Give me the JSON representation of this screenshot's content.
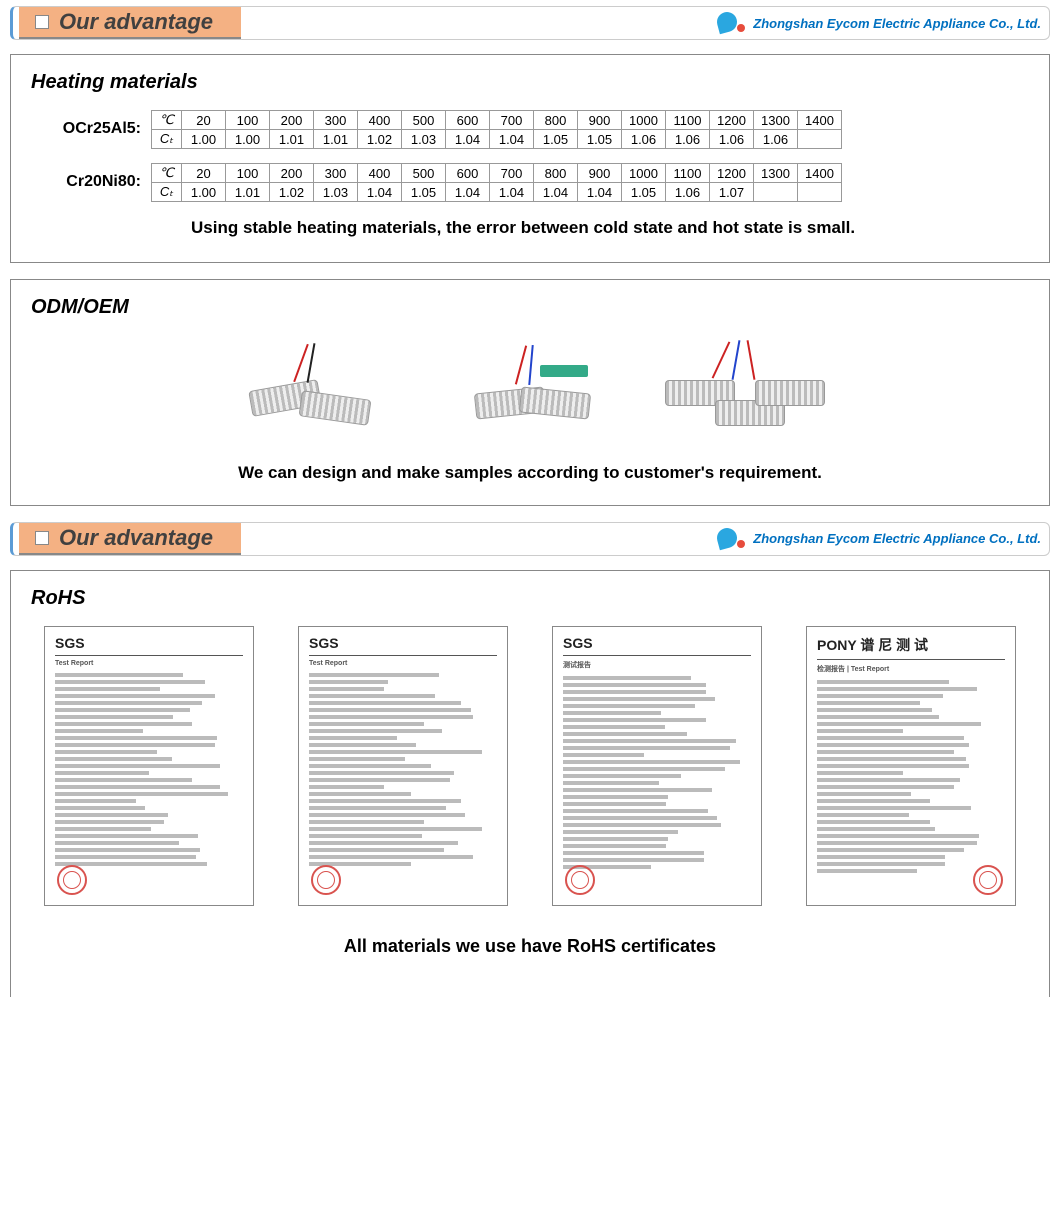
{
  "header": {
    "title": "Our advantage",
    "brand": "Zhongshan Eycom Electric Appliance Co., Ltd.",
    "brand_color": "#0070c0",
    "title_bg": "#f4b183",
    "accent_border": "#5b9bd5"
  },
  "heating": {
    "panel_title": "Heating materials",
    "materials": [
      {
        "label": "OCr25Al5:",
        "row1_head": "℃",
        "row2_head": "Cₜ",
        "temps": [
          "20",
          "100",
          "200",
          "300",
          "400",
          "500",
          "600",
          "700",
          "800",
          "900",
          "1000",
          "1100",
          "1200",
          "1300",
          "1400"
        ],
        "coeffs": [
          "1.00",
          "1.00",
          "1.01",
          "1.01",
          "1.02",
          "1.03",
          "1.04",
          "1.04",
          "1.05",
          "1.05",
          "1.06",
          "1.06",
          "1.06",
          "1.06",
          ""
        ]
      },
      {
        "label": "Cr20Ni80:",
        "row1_head": "℃",
        "row2_head": "Cₜ",
        "temps": [
          "20",
          "100",
          "200",
          "300",
          "400",
          "500",
          "600",
          "700",
          "800",
          "900",
          "1000",
          "1100",
          "1200",
          "1300",
          "1400"
        ],
        "coeffs": [
          "1.00",
          "1.01",
          "1.02",
          "1.03",
          "1.04",
          "1.05",
          "1.04",
          "1.04",
          "1.04",
          "1.04",
          "1.05",
          "1.06",
          "1.07",
          "",
          ""
        ]
      }
    ],
    "description": "Using stable heating materials, the error between cold state and hot state is small."
  },
  "odm": {
    "panel_title": "ODM/OEM",
    "description": "We can design and make samples according to customer's requirement."
  },
  "rohs": {
    "panel_title": "RoHS",
    "certs": [
      {
        "logo": "SGS",
        "title": "Test Report",
        "seal_side": "left"
      },
      {
        "logo": "SGS",
        "title": "Test Report",
        "seal_side": "left"
      },
      {
        "logo": "SGS",
        "title": "测试报告",
        "seal_side": "left"
      },
      {
        "logo": "PONY 谱 尼 测 试",
        "title": "检测报告 | Test Report",
        "seal_side": "right"
      }
    ],
    "description": "All materials we use have RoHS certificates"
  },
  "table_style": {
    "border_color": "#999999",
    "cell_min_width": 44,
    "font_size": 13
  }
}
